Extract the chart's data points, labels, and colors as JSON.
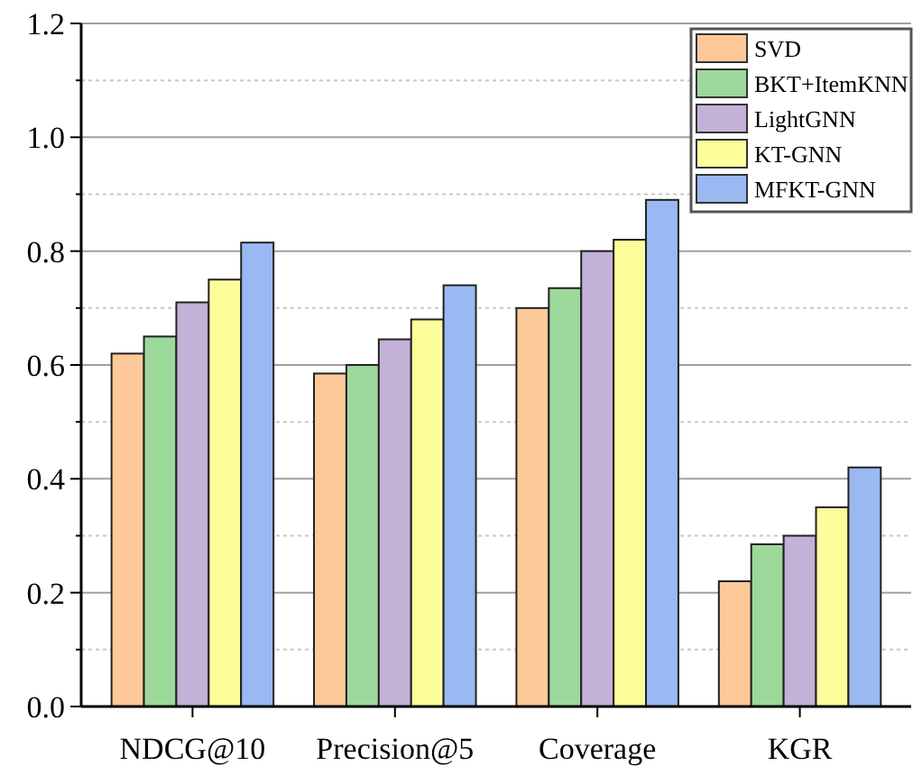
{
  "chart_data": {
    "type": "bar",
    "categories": [
      "NDCG@10",
      "Precision@5",
      "Coverage",
      "KGR"
    ],
    "series": [
      {
        "name": "SVD",
        "color": "#fdc998",
        "values": [
          0.62,
          0.585,
          0.7,
          0.22
        ]
      },
      {
        "name": "BKT+ItemKNN",
        "color": "#9dd89b",
        "values": [
          0.65,
          0.6,
          0.735,
          0.285
        ]
      },
      {
        "name": "LightGNN",
        "color": "#c3b1d7",
        "values": [
          0.71,
          0.645,
          0.8,
          0.3
        ]
      },
      {
        "name": "KT-GNN",
        "color": "#fdfd9b",
        "values": [
          0.75,
          0.68,
          0.82,
          0.35
        ]
      },
      {
        "name": "MFKT-GNN",
        "color": "#9ab9f2",
        "values": [
          0.815,
          0.74,
          0.89,
          0.42
        ]
      }
    ],
    "ylim": [
      0,
      1.2
    ],
    "yticks": [
      {
        "value": 0,
        "label": "0.0"
      },
      {
        "value": 0.1,
        "label": null
      },
      {
        "value": 0.2,
        "label": "0.2"
      },
      {
        "value": 0.3,
        "label": null
      },
      {
        "value": 0.4,
        "label": "0.4"
      },
      {
        "value": 0.5,
        "label": null
      },
      {
        "value": 0.6,
        "label": "0.6"
      },
      {
        "value": 0.7,
        "label": null
      },
      {
        "value": 0.8,
        "label": "0.8"
      },
      {
        "value": 0.9,
        "label": null
      },
      {
        "value": 1,
        "label": "1.0"
      },
      {
        "value": 1.1,
        "label": null
      },
      {
        "value": 1.2,
        "label": "1.2"
      }
    ],
    "grid": "y",
    "legend": "top right"
  }
}
